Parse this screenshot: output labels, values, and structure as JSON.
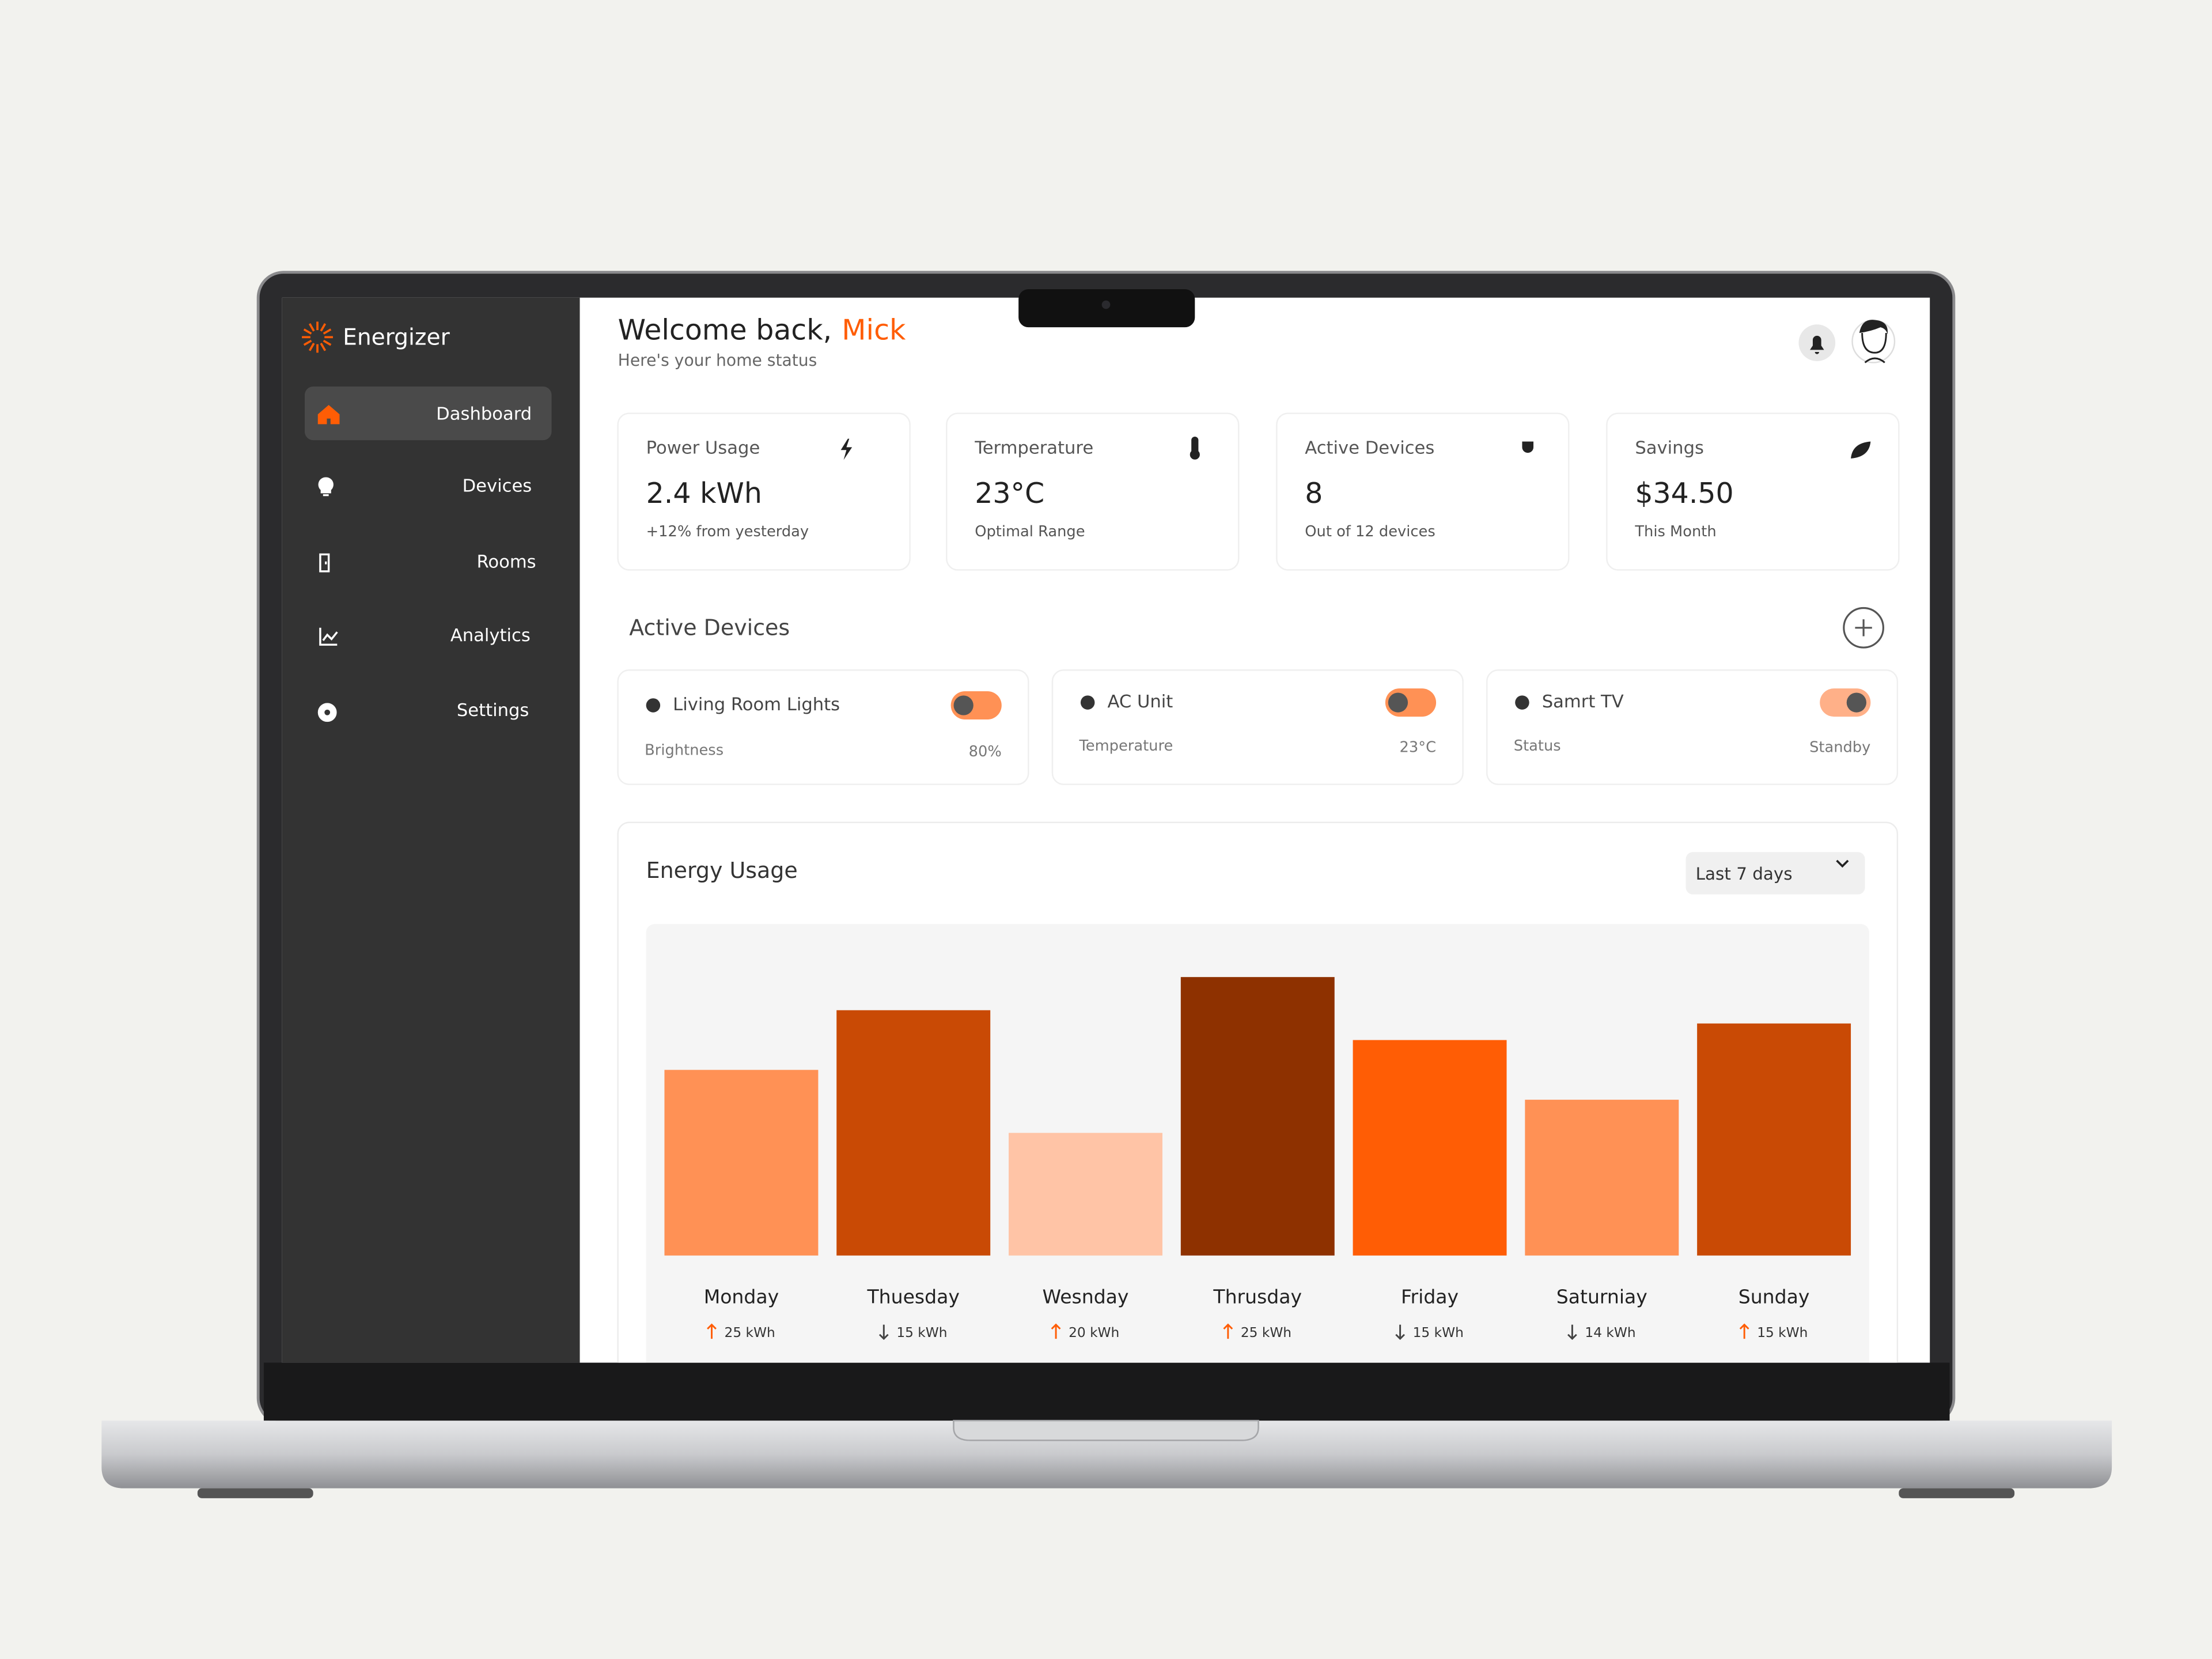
{
  "app": {
    "name": "Energizer"
  },
  "nav": [
    "Dashboard",
    "Devices",
    "Rooms",
    "Analytics",
    "Settings"
  ],
  "header": {
    "greeting": "Welcome back,",
    "user": "Mick",
    "subtitle": "Here's your home status"
  },
  "stats": [
    {
      "title": "Power Usage",
      "value": "2.4 kWh",
      "note": "+12% from yesterday"
    },
    {
      "title": "Termperature",
      "value": "23°C",
      "note": "Optimal Range"
    },
    {
      "title": "Active Devices",
      "value": "8",
      "note": "Out of 12 devices"
    },
    {
      "title": "Savings",
      "value": "$34.50",
      "note": "This Month"
    }
  ],
  "active_devices": {
    "title": "Active Devices",
    "devices": [
      {
        "name": "Living Room Lights",
        "label": "Brightness",
        "value": "80%"
      },
      {
        "name": "AC Unit",
        "label": "Temperature",
        "value": "23°C"
      },
      {
        "name": "Samrt TV",
        "label": "Status",
        "value": "Standby"
      }
    ]
  },
  "chart_data": {
    "type": "bar",
    "title": "Energy Usage",
    "range_select": "Last 7 days",
    "categories": [
      "Monday",
      "Thuesday",
      "Wesnday",
      "Thrusday",
      "Friday",
      "Saturniay",
      "Sunday"
    ],
    "values": [
      56,
      74,
      37,
      84,
      65,
      47,
      70
    ],
    "colors": [
      "#ff9155",
      "#c94a05",
      "#ffc4a6",
      "#8e3100",
      "#ff5d05",
      "#ff9155",
      "#c94a05"
    ],
    "usage": [
      "25 kWh",
      "15 kWh",
      "20 kWh",
      "25 kWh",
      "15 kWh",
      "14 kWh",
      "15 kWh"
    ],
    "trend": [
      "up",
      "down",
      "up",
      "up",
      "down",
      "down",
      "up"
    ],
    "ylim": [
      0,
      100
    ]
  }
}
